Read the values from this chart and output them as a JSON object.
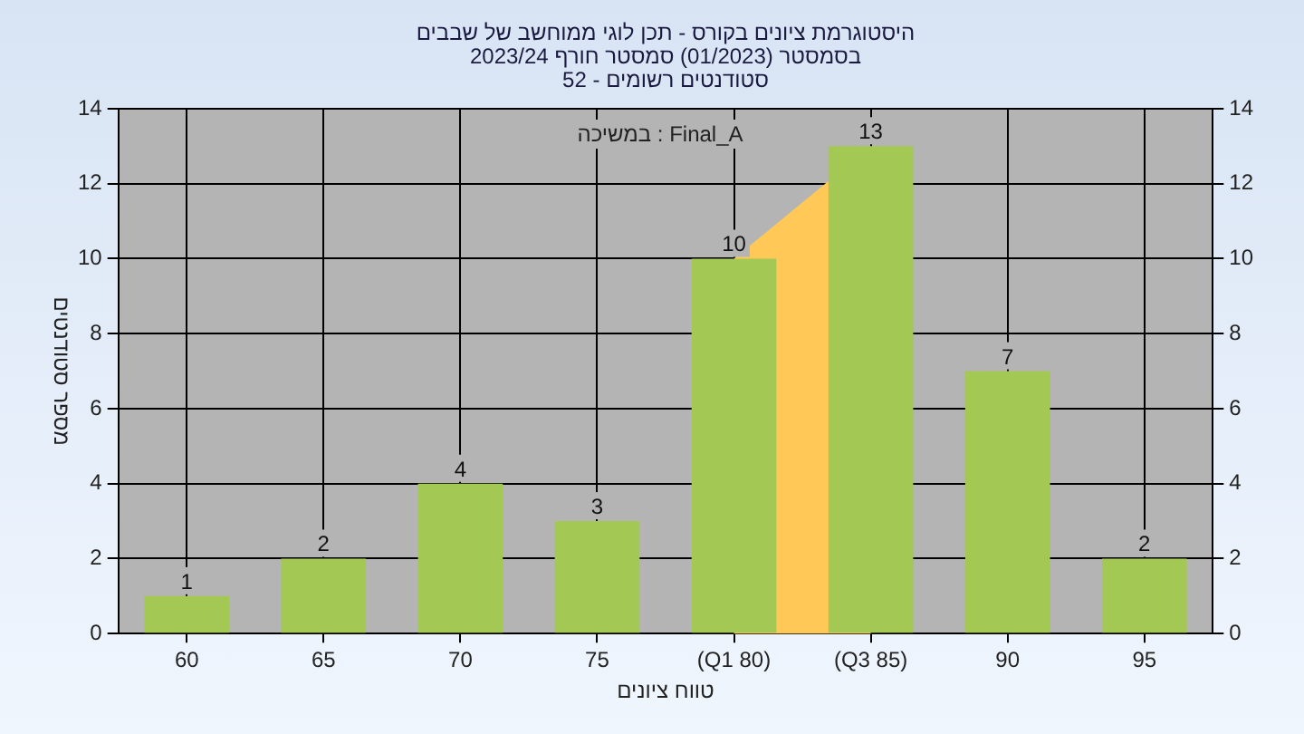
{
  "chart_data": {
    "type": "bar",
    "title": "היסטוגרמת ציונים בקורס - תכן לוגי ממוחשב של שבבים",
    "subtitle": "בסמסטר (01/2023) סמסטר חורף 2023/24\nסטודנטים רשומים - 52",
    "xlabel": "טווח ציונים",
    "ylabel": "מספר סטודנטים",
    "categories": [
      "60",
      "65",
      "70",
      "75",
      "(Q1 80)",
      "(Q3 85)",
      "90",
      "95"
    ],
    "values": [
      1,
      2,
      4,
      3,
      10,
      13,
      7,
      2
    ],
    "color": "#a4c854",
    "ylim": [
      0,
      14
    ],
    "yticks": [
      0,
      2,
      4,
      6,
      8,
      10,
      12,
      14
    ],
    "y2lim": [
      0,
      14
    ],
    "y2ticks": [
      0,
      2,
      4,
      6,
      8,
      10,
      12,
      14
    ],
    "bands": [
      {
        "axis": "x",
        "from": "(Q1 80)",
        "to": "(Q3 85)",
        "color": "#ffc857"
      }
    ],
    "annotations": [
      "Final_A : במשיכה"
    ],
    "data_labels": true,
    "grid": true,
    "legend": false
  }
}
